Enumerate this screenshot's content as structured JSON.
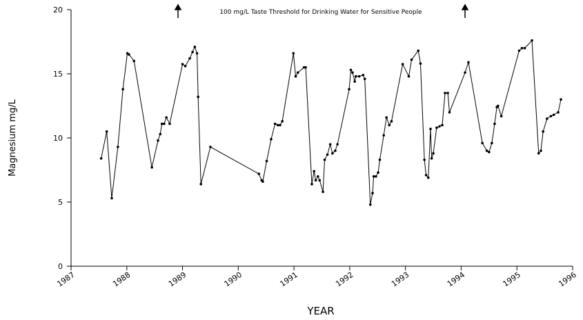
{
  "chart_data": {
    "type": "line",
    "annotation": "100 mg/L Taste Threshold for Drinking Water for Sensitive People",
    "xlabel": "YEAR",
    "ylabel": "Magnesium mg/L",
    "color": "#000000",
    "xlim": [
      1987,
      1996
    ],
    "xticks": [
      1987,
      1988,
      1989,
      1990,
      1991,
      1992,
      1993,
      1994,
      1995,
      1996
    ],
    "ylim": [
      0,
      20
    ],
    "yticks": [
      0,
      5,
      10,
      15,
      20
    ],
    "x": [
      1987.54,
      1987.64,
      1987.73,
      1987.84,
      1987.93,
      1988.01,
      1988.04,
      1988.13,
      1988.45,
      1988.56,
      1988.6,
      1988.63,
      1988.67,
      1988.71,
      1988.77,
      1989.0,
      1989.05,
      1989.13,
      1989.18,
      1989.22,
      1989.26,
      1989.28,
      1989.33,
      1989.5,
      1990.37,
      1990.42,
      1990.44,
      1990.51,
      1990.59,
      1990.66,
      1990.71,
      1990.75,
      1990.79,
      1990.99,
      1991.03,
      1991.07,
      1991.18,
      1991.21,
      1991.32,
      1991.36,
      1991.39,
      1991.43,
      1991.46,
      1991.52,
      1991.55,
      1991.6,
      1991.65,
      1991.69,
      1991.74,
      1991.78,
      1991.99,
      1992.02,
      1992.05,
      1992.09,
      1992.11,
      1992.17,
      1992.24,
      1992.27,
      1992.37,
      1992.41,
      1992.43,
      1992.47,
      1992.51,
      1992.54,
      1992.61,
      1992.66,
      1992.71,
      1992.75,
      1992.95,
      1993.06,
      1993.11,
      1993.23,
      1993.27,
      1993.34,
      1993.37,
      1993.41,
      1993.45,
      1993.47,
      1993.5,
      1993.56,
      1993.61,
      1993.66,
      1993.71,
      1993.76,
      1993.79,
      1994.07,
      1994.13,
      1994.38,
      1994.46,
      1994.5,
      1994.55,
      1994.6,
      1994.64,
      1994.66,
      1994.72,
      1995.04,
      1995.09,
      1995.14,
      1995.27,
      1995.39,
      1995.43,
      1995.47,
      1995.54,
      1995.61,
      1995.66,
      1995.74,
      1995.79
    ],
    "values": [
      8.4,
      10.5,
      5.3,
      9.3,
      13.8,
      16.6,
      16.5,
      16.0,
      7.7,
      9.8,
      10.3,
      11.1,
      11.1,
      11.6,
      11.1,
      15.75,
      15.6,
      16.2,
      16.7,
      17.1,
      16.6,
      13.2,
      6.4,
      9.3,
      7.2,
      6.7,
      6.6,
      8.2,
      9.9,
      11.1,
      11.0,
      11.0,
      11.3,
      16.6,
      14.8,
      15.1,
      15.5,
      15.5,
      6.4,
      7.4,
      6.7,
      7.0,
      6.7,
      5.8,
      8.3,
      8.7,
      9.5,
      8.8,
      9.0,
      9.5,
      13.8,
      15.3,
      15.1,
      14.4,
      14.8,
      14.8,
      14.9,
      14.6,
      4.8,
      5.7,
      7.0,
      7.0,
      7.3,
      8.3,
      10.2,
      11.6,
      11.0,
      11.3,
      15.75,
      14.8,
      16.1,
      16.8,
      15.8,
      8.3,
      7.1,
      6.9,
      10.7,
      8.4,
      8.8,
      10.8,
      10.9,
      11.0,
      13.5,
      13.5,
      12.0,
      15.1,
      15.9,
      9.6,
      9.0,
      8.9,
      9.6,
      11.1,
      12.4,
      12.5,
      11.7,
      16.8,
      17.0,
      17.0,
      17.6,
      8.8,
      9.0,
      10.5,
      11.5,
      11.7,
      11.8,
      12.0,
      13.0
    ]
  }
}
